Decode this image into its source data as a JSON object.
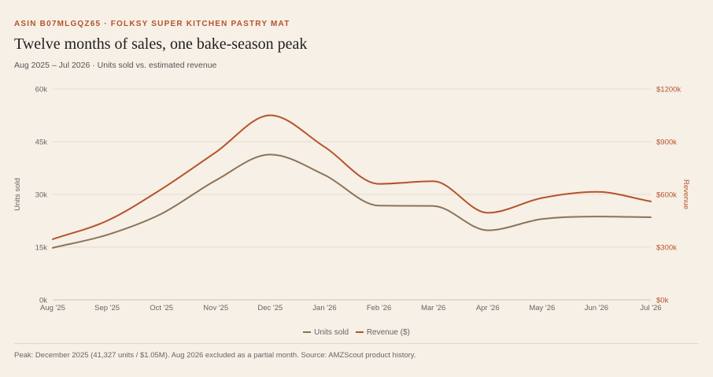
{
  "header": {
    "eyebrow": "ASIN B07MLGQZ65 · FOLKSY SUPER KITCHEN PASTRY MAT",
    "title": "Twelve months of sales, one bake-season peak",
    "subtitle": "Aug 2025 – Jul 2026 · Units sold vs. estimated revenue"
  },
  "footnote": "Peak: December 2025 (41,327 units / $1.05M). Aug 2026 excluded as a partial month. Source: AMZScout product history.",
  "colors": {
    "units": "#8c7358",
    "revenue": "#b5532b",
    "grid": "#e6ddcf",
    "axis_text": "#666666"
  },
  "chart_data": {
    "type": "line",
    "categories": [
      "Aug '25",
      "Sep '25",
      "Oct '25",
      "Nov '25",
      "Dec '25",
      "Jan '26",
      "Feb '26",
      "Mar '26",
      "Apr '26",
      "May '26",
      "Jun '26",
      "Jul '26"
    ],
    "series": [
      {
        "name": "Units sold",
        "axis": "left",
        "values": [
          14800,
          18500,
          24500,
          34000,
          41327,
          35500,
          26800,
          26700,
          19800,
          23000,
          23700,
          23500
        ]
      },
      {
        "name": "Revenue ($)",
        "axis": "right",
        "values": [
          345000,
          450000,
          630000,
          840000,
          1050000,
          870000,
          660000,
          675000,
          495000,
          580000,
          615000,
          560000
        ]
      }
    ],
    "ylabel_left": "Units sold",
    "ylabel_right": "Revenue",
    "ylim_left": [
      0,
      60000
    ],
    "ylim_right": [
      0,
      1200000
    ],
    "yticks_left": [
      "0k",
      "15k",
      "30k",
      "45k",
      "60k"
    ],
    "yticks_right": [
      "$0k",
      "$300k",
      "$600k",
      "$900k",
      "$1200k"
    ],
    "grid": true,
    "legend_position": "bottom"
  }
}
